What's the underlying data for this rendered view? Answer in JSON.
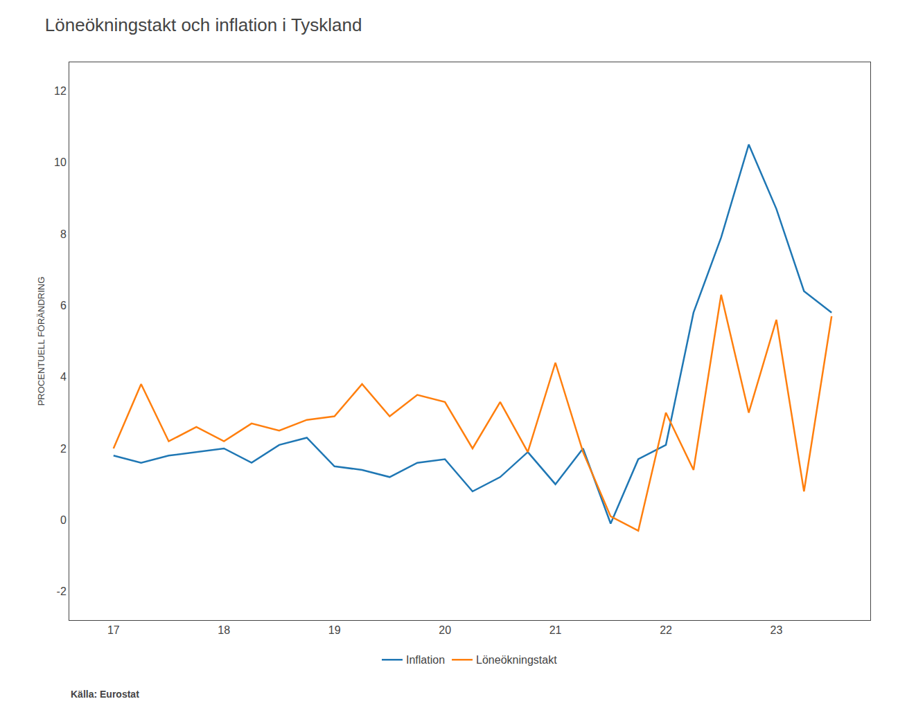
{
  "chart_data": {
    "type": "line",
    "title": "Löneökningstakt och inflation i Tyskland",
    "ylabel": "PROCENTUELL FÖRÄNDRING",
    "annotations": [
      "Källa: Eurostat"
    ],
    "x": [
      17.0,
      17.25,
      17.5,
      17.75,
      18.0,
      18.25,
      18.5,
      18.75,
      19.0,
      19.25,
      19.5,
      19.75,
      20.0,
      20.25,
      20.5,
      20.75,
      21.0,
      21.25,
      21.5,
      21.75,
      22.0,
      22.25,
      22.5,
      22.75,
      23.0,
      23.25,
      23.5
    ],
    "series": [
      {
        "name": "Inflation",
        "values": [
          1.8,
          1.6,
          1.8,
          1.9,
          2.0,
          1.6,
          2.1,
          2.3,
          1.5,
          1.4,
          1.2,
          1.6,
          1.7,
          0.8,
          1.2,
          1.9,
          1.0,
          2.0,
          -0.1,
          1.7,
          2.1,
          5.8,
          7.9,
          10.5,
          8.7,
          6.4,
          5.8
        ]
      },
      {
        "name": "Löneökningstakt",
        "values": [
          2.0,
          3.8,
          2.2,
          2.6,
          2.2,
          2.7,
          2.5,
          2.8,
          2.9,
          3.8,
          2.9,
          3.5,
          3.3,
          2.0,
          3.3,
          1.9,
          4.4,
          1.9,
          0.1,
          -0.3,
          3.0,
          1.4,
          6.3,
          3.0,
          5.6,
          0.8,
          5.7
        ]
      }
    ],
    "xlim": [
      16.6,
      23.85
    ],
    "ylim": [
      -2.8,
      12.8
    ],
    "xticks": [
      17,
      18,
      19,
      20,
      21,
      22,
      23
    ],
    "yticks": [
      -2,
      0,
      2,
      4,
      6,
      8,
      10,
      12
    ],
    "grid": false,
    "legend": "bottom"
  }
}
